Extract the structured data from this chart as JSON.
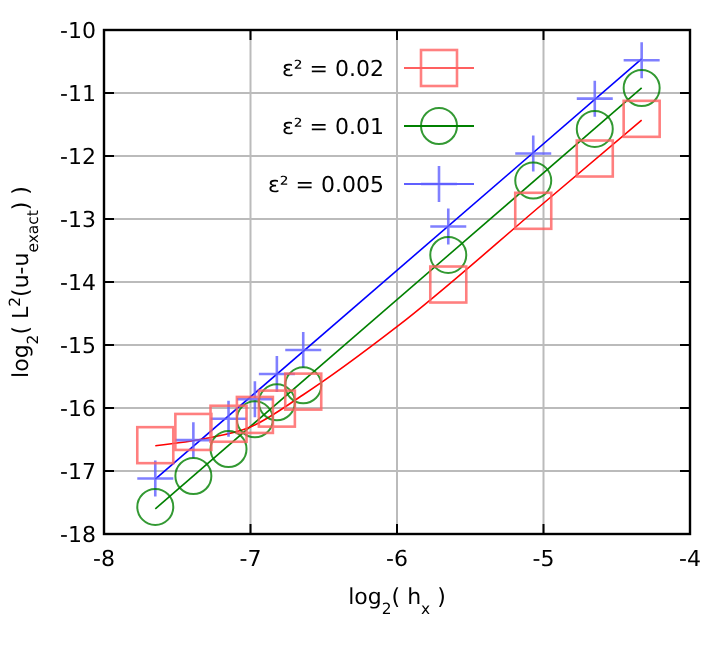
{
  "chart_data": {
    "type": "scatter",
    "xlabel": "log$_{2}$( h$_{x}$ )",
    "ylabel": "log$_{2}$( L$^{2}$(u-u$_{exact}$) )",
    "xlim": [
      -8,
      -4
    ],
    "ylim": [
      -18,
      -10
    ],
    "xticks": [
      -8,
      -7,
      -6,
      -5,
      -4
    ],
    "yticks": [
      -18,
      -17,
      -16,
      -15,
      -14,
      -13,
      -12,
      -11,
      -10
    ],
    "grid": true,
    "legend": "top left",
    "x": [
      -7.65,
      -7.39,
      -7.15,
      -6.97,
      -6.82,
      -6.64,
      -5.65,
      -5.07,
      -4.65,
      -4.33
    ],
    "series": [
      {
        "name": "ε² = 0.02",
        "color": "#ff6060",
        "marker": "square",
        "values": [
          -16.59,
          -16.38,
          -16.25,
          -16.11,
          -16.01,
          -15.74,
          -14.04,
          -12.87,
          -12.04,
          -11.41
        ]
      },
      {
        "name": "ε² = 0.01",
        "color": "#008000",
        "marker": "circle",
        "values": [
          -17.57,
          -17.08,
          -16.65,
          -16.18,
          -15.91,
          -15.64,
          -13.57,
          -12.39,
          -11.57,
          -10.92
        ]
      },
      {
        "name": "ε² = 0.005",
        "color": "#6060ff",
        "marker": "cross",
        "values": [
          -17.12,
          -16.51,
          -16.17,
          -15.86,
          -15.46,
          -15.08,
          -13.12,
          -11.96,
          -11.09,
          -10.48
        ]
      },
      {
        "type": "line",
        "color": "#ff0000",
        "x": [
          -7.65,
          -7.3,
          -7,
          -6.64,
          -6,
          -5,
          -4.33
        ],
        "values": [
          -16.6,
          -16.48,
          -16.3,
          -15.79,
          -14.71,
          -12.75,
          -11.43
        ]
      },
      {
        "type": "line",
        "color": "#008000",
        "x": [
          -7.65,
          -4.33
        ],
        "values": [
          -17.6,
          -10.92
        ]
      },
      {
        "type": "line",
        "color": "#0000ff",
        "x": [
          -7.65,
          -4.33
        ],
        "values": [
          -17.13,
          -10.46
        ]
      }
    ]
  }
}
